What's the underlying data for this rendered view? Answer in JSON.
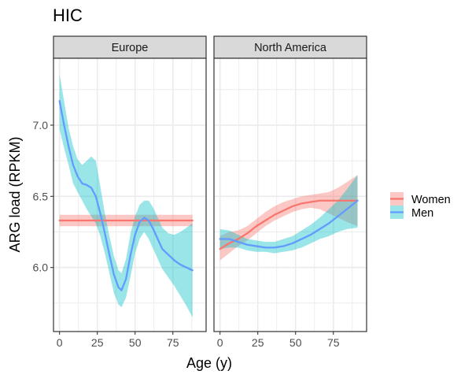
{
  "chart_data": {
    "type": "line",
    "title": "HIC",
    "xlabel": "Age (y)",
    "ylabel": "ARG load (RPKM)",
    "xlim": [
      -4,
      97
    ],
    "ylim": [
      5.55,
      7.47
    ],
    "x_ticks": [
      0,
      25,
      50,
      75
    ],
    "x_tick_labels": [
      "0",
      "25",
      "50",
      "75"
    ],
    "y_ticks": [
      6.0,
      6.5,
      7.0
    ],
    "y_tick_labels": [
      "6.0",
      "6.5",
      "7.0"
    ],
    "grid": true,
    "legend_position": "right",
    "colors": {
      "Women": "#F8766D",
      "Men": "#619CFF",
      "Women_band": "#F8766D",
      "Men_band": "#00BFC4"
    },
    "legend": [
      {
        "label": "Women",
        "series": "Women"
      },
      {
        "label": "Men",
        "series": "Men"
      }
    ],
    "panels": [
      {
        "name": "Europe",
        "series": [
          {
            "name": "Women",
            "x": [
              0,
              88
            ],
            "y": [
              6.33,
              6.33
            ],
            "lower": [
              6.29,
              6.29
            ],
            "upper": [
              6.37,
              6.37
            ]
          },
          {
            "name": "Men",
            "x": [
              0,
              3,
              6,
              9,
              12,
              15,
              18,
              21,
              24,
              27,
              30,
              33,
              36,
              39,
              41,
              44,
              47,
              50,
              53,
              56,
              59,
              62,
              65,
              68,
              72,
              76,
              80,
              84,
              88
            ],
            "y": [
              7.17,
              7.0,
              6.85,
              6.72,
              6.64,
              6.59,
              6.58,
              6.56,
              6.5,
              6.38,
              6.24,
              6.09,
              5.95,
              5.86,
              5.84,
              5.92,
              6.09,
              6.23,
              6.32,
              6.35,
              6.33,
              6.27,
              6.2,
              6.13,
              6.09,
              6.05,
              6.02,
              6.0,
              5.98
            ],
            "lower": [
              6.97,
              6.84,
              6.72,
              6.59,
              6.53,
              6.47,
              6.41,
              6.36,
              6.31,
              6.22,
              6.1,
              5.96,
              5.82,
              5.74,
              5.72,
              5.79,
              5.94,
              6.1,
              6.2,
              6.25,
              6.2,
              6.13,
              6.06,
              5.99,
              5.93,
              5.87,
              5.8,
              5.73,
              5.65
            ],
            "upper": [
              7.36,
              7.17,
              6.98,
              6.85,
              6.76,
              6.72,
              6.75,
              6.78,
              6.75,
              6.57,
              6.38,
              6.22,
              6.08,
              5.98,
              5.96,
              6.06,
              6.24,
              6.36,
              6.44,
              6.47,
              6.47,
              6.42,
              6.35,
              6.28,
              6.24,
              6.23,
              6.25,
              6.28,
              6.31
            ]
          }
        ]
      },
      {
        "name": "North America",
        "series": [
          {
            "name": "Women",
            "x": [
              0,
              6,
              12,
              18,
              24,
              30,
              36,
              42,
              48,
              54,
              60,
              66,
              72,
              78,
              84,
              91
            ],
            "y": [
              6.13,
              6.17,
              6.2,
              6.24,
              6.29,
              6.33,
              6.37,
              6.4,
              6.43,
              6.45,
              6.46,
              6.47,
              6.47,
              6.47,
              6.47,
              6.47
            ],
            "lower": [
              6.05,
              6.1,
              6.15,
              6.19,
              6.24,
              6.29,
              6.33,
              6.36,
              6.39,
              6.41,
              6.42,
              6.41,
              6.38,
              6.35,
              6.32,
              6.29
            ],
            "upper": [
              6.22,
              6.25,
              6.26,
              6.29,
              6.34,
              6.39,
              6.43,
              6.46,
              6.48,
              6.5,
              6.51,
              6.52,
              6.53,
              6.56,
              6.6,
              6.65
            ]
          },
          {
            "name": "Men",
            "x": [
              0,
              6,
              12,
              18,
              24,
              30,
              36,
              42,
              48,
              54,
              60,
              66,
              72,
              78,
              84,
              91
            ],
            "y": [
              6.2,
              6.2,
              6.18,
              6.16,
              6.15,
              6.14,
              6.14,
              6.15,
              6.17,
              6.2,
              6.23,
              6.27,
              6.31,
              6.36,
              6.41,
              6.47
            ],
            "lower": [
              6.13,
              6.14,
              6.14,
              6.12,
              6.11,
              6.11,
              6.1,
              6.11,
              6.12,
              6.14,
              6.17,
              6.2,
              6.22,
              6.25,
              6.27,
              6.28
            ],
            "upper": [
              6.27,
              6.26,
              6.23,
              6.2,
              6.19,
              6.18,
              6.18,
              6.2,
              6.22,
              6.26,
              6.3,
              6.35,
              6.41,
              6.47,
              6.55,
              6.65
            ]
          }
        ]
      }
    ]
  }
}
